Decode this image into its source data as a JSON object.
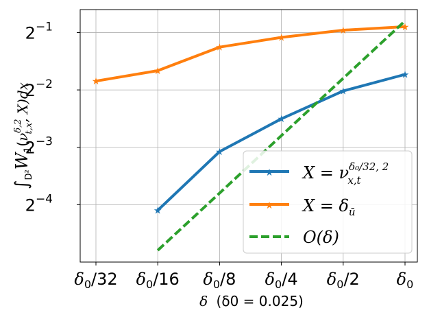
{
  "chart_data": {
    "type": "line",
    "categories": [
      "δ0/32",
      "δ0/16",
      "δ0/8",
      "δ0/4",
      "δ0/2",
      "δ0"
    ],
    "xlabel_prefix": "δ",
    "xlabel_note": "(δ0 = 0.025)",
    "ylabel": "∫D² W1(ν_{t,x}^{δ,2}, X) dx",
    "y_scale": "log2",
    "y_exponent_range": [
      -5.0,
      -0.6
    ],
    "yticks": [
      {
        "base": "2",
        "exp": "−1",
        "value": 0.5
      },
      {
        "base": "2",
        "exp": "−2",
        "value": 0.25
      },
      {
        "base": "2",
        "exp": "−3",
        "value": 0.125
      },
      {
        "base": "2",
        "exp": "−4",
        "value": 0.0625
      }
    ],
    "grid": true,
    "legend_position": "lower right",
    "series": [
      {
        "name": "X = ν_{x,t}^{δ0/32, 2}",
        "color": "#1f77b4",
        "style": "solid",
        "marker": "star",
        "values": [
          null,
          0.0584,
          0.1187,
          0.1764,
          0.2469,
          0.3015
        ]
      },
      {
        "name": "X = δ_ū",
        "color": "#ff7f0e",
        "style": "solid",
        "marker": "star",
        "values": [
          0.2782,
          0.3155,
          0.4192,
          0.4717,
          0.5146,
          0.5366
        ]
      },
      {
        "name": "O(δ)",
        "color": "#2ca02c",
        "style": "dashed",
        "marker": "none",
        "values": [
          null,
          0.036,
          0.0719,
          0.1439,
          0.2877,
          0.5755
        ]
      }
    ]
  },
  "legend": {
    "blue": {
      "lhs": "X",
      "eq": " = ",
      "sym": "ν",
      "sup": "δ₀/32, 2",
      "sub": "x,t"
    },
    "orange": {
      "lhs": "X",
      "eq": " = ",
      "sym": "δ",
      "sub": "ū"
    },
    "green": {
      "text": "O(δ)"
    }
  },
  "ylabel_parts": {
    "integral": "∫",
    "domain": "D²",
    "w": "W",
    "w_sub": "1",
    "open": "(",
    "nu": "ν",
    "nu_sup": "δ,2",
    "nu_sub": "t,x",
    "rest": ", X)dx"
  }
}
